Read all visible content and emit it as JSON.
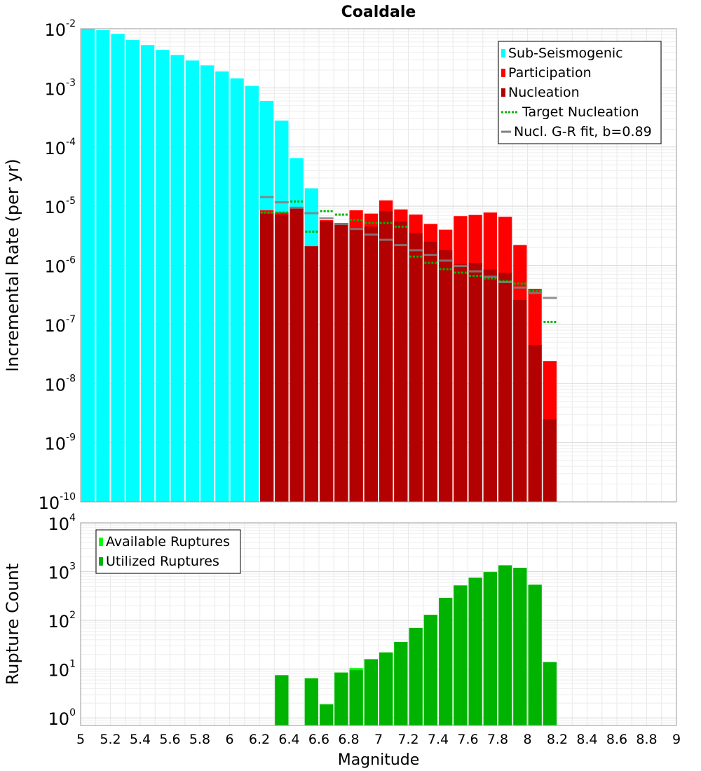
{
  "chart_data": [
    {
      "type": "bar",
      "title": "Coaldale",
      "ylabel": "Incremental Rate (per yr)",
      "xlim": [
        5,
        9
      ],
      "ylim": [
        1e-10,
        0.01
      ],
      "yscale": "log",
      "grid": true,
      "legend_placement": "top-right",
      "x": [
        5.05,
        5.15,
        5.25,
        5.35,
        5.45,
        5.55,
        5.65,
        5.75,
        5.85,
        5.95,
        6.05,
        6.15,
        6.25,
        6.35,
        6.45,
        6.55,
        6.65,
        6.75,
        6.85,
        6.95,
        7.05,
        7.15,
        7.25,
        7.35,
        7.45,
        7.55,
        7.65,
        7.75,
        7.85,
        7.95,
        8.05,
        8.15,
        8.25
      ],
      "series": [
        {
          "name": "Sub-Seismogenic",
          "kind": "bar",
          "color": "#00ffff",
          "values": [
            0.01,
            0.0095,
            0.0082,
            0.0065,
            0.0053,
            0.0044,
            0.0036,
            0.0029,
            0.0024,
            0.0019,
            0.00145,
            0.00108,
            0.0006,
            0.00028,
            6.5e-05,
            2e-05,
            null,
            null,
            null,
            null,
            null,
            null,
            null,
            null,
            null,
            null,
            null,
            null,
            null,
            null,
            null,
            null,
            null
          ]
        },
        {
          "name": "Participation",
          "kind": "bar",
          "color": "#ff0000",
          "values": [
            null,
            null,
            null,
            null,
            null,
            null,
            null,
            null,
            null,
            null,
            null,
            null,
            8.5e-06,
            7.8e-06,
            9.5e-06,
            2.1e-06,
            5.8e-06,
            5.2e-06,
            8.5e-06,
            7.5e-06,
            1.25e-05,
            8.8e-06,
            7.2e-06,
            5e-06,
            4e-06,
            6.8e-06,
            7.1e-06,
            7.8e-06,
            6.6e-06,
            2.2e-06,
            4e-07,
            2.4e-08,
            null
          ]
        },
        {
          "name": "Nucleation",
          "kind": "bar",
          "color": "#b30000",
          "values": [
            null,
            null,
            null,
            null,
            null,
            null,
            null,
            null,
            null,
            null,
            null,
            null,
            7.5e-06,
            7.2e-06,
            9.3e-06,
            2.1e-06,
            5.5e-06,
            5.1e-06,
            4.2e-06,
            4.5e-06,
            8.2e-06,
            5.5e-06,
            3.5e-06,
            2.5e-06,
            1.8e-06,
            1.05e-06,
            1.1e-06,
            8.5e-07,
            7.5e-07,
            2.6e-07,
            4.5e-08,
            2.5e-09,
            null
          ]
        },
        {
          "name": "Target Nucleation",
          "kind": "dotted-segment",
          "color": "#00b300",
          "values": [
            null,
            null,
            null,
            null,
            null,
            null,
            null,
            null,
            null,
            null,
            null,
            null,
            7.8e-06,
            7.8e-06,
            1.2e-05,
            3.7e-06,
            8.2e-06,
            7.2e-06,
            5.8e-06,
            5.2e-06,
            5.2e-06,
            4.5e-06,
            1.4e-06,
            1.1e-06,
            8.6e-07,
            7.5e-07,
            6.6e-07,
            6e-07,
            5.4e-07,
            4.9e-07,
            3.7e-07,
            1.1e-07,
            null
          ]
        },
        {
          "name": "Nucl. G-R fit, b=0.89",
          "kind": "solid-segment",
          "color": "#808080",
          "values": [
            null,
            null,
            null,
            null,
            null,
            null,
            null,
            null,
            null,
            null,
            null,
            null,
            1.42e-05,
            1.16e-05,
            9.4e-06,
            7.6e-06,
            6.2e-06,
            5e-06,
            4.1e-06,
            3.3e-06,
            2.7e-06,
            2.2e-06,
            1.8e-06,
            1.5e-06,
            1.2e-06,
            9.7e-07,
            7.9e-07,
            6.4e-07,
            5.2e-07,
            4.2e-07,
            3.4e-07,
            2.8e-07,
            null
          ]
        }
      ]
    },
    {
      "type": "bar",
      "title": "",
      "xlabel": "Magnitude",
      "ylabel": "Rupture Count",
      "xlim": [
        5,
        9
      ],
      "ylim": [
        0.7,
        10000
      ],
      "yscale": "log",
      "grid": true,
      "legend_placement": "top-left",
      "x": [
        5.05,
        5.15,
        5.25,
        5.35,
        5.45,
        5.55,
        5.65,
        5.75,
        5.85,
        5.95,
        6.05,
        6.15,
        6.25,
        6.35,
        6.45,
        6.55,
        6.65,
        6.75,
        6.85,
        6.95,
        7.05,
        7.15,
        7.25,
        7.35,
        7.45,
        7.55,
        7.65,
        7.75,
        7.85,
        7.95,
        8.05,
        8.15,
        8.25
      ],
      "series": [
        {
          "name": "Available Ruptures",
          "kind": "bar",
          "color": "#00ff00",
          "values": [
            null,
            null,
            null,
            null,
            null,
            null,
            null,
            null,
            null,
            null,
            null,
            null,
            null,
            7.5,
            null,
            6.5,
            1.9,
            8.5,
            10.5,
            16,
            22,
            36,
            70,
            130,
            290,
            520,
            750,
            980,
            1350,
            1200,
            540,
            14,
            null
          ]
        },
        {
          "name": "Utilized Ruptures",
          "kind": "bar",
          "color": "#00b300",
          "values": [
            null,
            null,
            null,
            null,
            null,
            null,
            null,
            null,
            null,
            null,
            null,
            null,
            null,
            7.5,
            null,
            6.5,
            1.9,
            8.5,
            9.5,
            16,
            22,
            36,
            70,
            130,
            290,
            520,
            750,
            980,
            1350,
            1200,
            540,
            14,
            null
          ]
        }
      ]
    }
  ]
}
